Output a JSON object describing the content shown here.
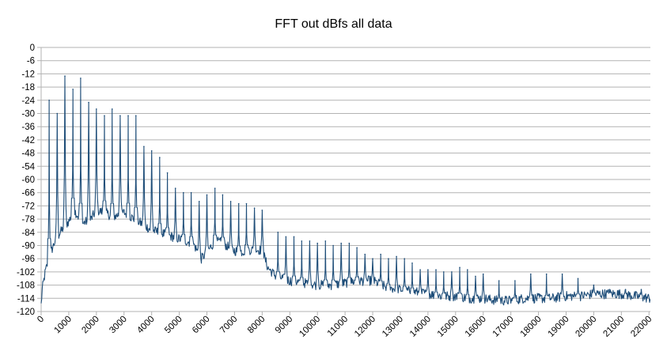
{
  "chart_data": {
    "type": "line",
    "title": "FFT out dBfs all data",
    "xlabel": "",
    "ylabel": "",
    "xlim": [
      0,
      22050
    ],
    "ylim": [
      -120,
      0
    ],
    "y_ticks": [
      0,
      -6,
      -12,
      -18,
      -24,
      -30,
      -36,
      -42,
      -48,
      -54,
      -60,
      -66,
      -72,
      -78,
      -84,
      -90,
      -96,
      -102,
      -108,
      -114,
      -120
    ],
    "x_ticks": [
      0,
      1000,
      2000,
      3000,
      4000,
      5000,
      6000,
      7000,
      8000,
      9000,
      10000,
      11000,
      12000,
      13000,
      14000,
      15000,
      16000,
      17000,
      18000,
      19000,
      20000,
      21000,
      22000
    ],
    "grid": true,
    "legend": "none",
    "line_color": "#1f4e79",
    "series": [
      {
        "name": "FFT out dBfs",
        "noise_floor": {
          "x": [
            0,
            40,
            150,
            300,
            500,
            800,
            1000,
            1200,
            1500,
            1800,
            2000,
            2300,
            2600,
            3000,
            3500,
            4000,
            4500,
            5000,
            5500,
            5800,
            6000,
            6300,
            6600,
            6900,
            7200,
            7500,
            7800,
            8000,
            8200,
            8500,
            9000,
            9500,
            10000,
            10500,
            11000,
            11500,
            12000,
            12500,
            13000,
            13500,
            14000,
            14500,
            15000,
            15500,
            16000,
            16500,
            17000,
            17500,
            18000,
            18500,
            19000,
            19500,
            20000,
            20500,
            21000,
            21500,
            22050
          ],
          "y": [
            -117,
            -110,
            -102,
            -95,
            -88,
            -82,
            -79,
            -74,
            -80,
            -78,
            -74,
            -75,
            -77,
            -75,
            -79,
            -83,
            -85,
            -87,
            -89,
            -96,
            -93,
            -88,
            -89,
            -92,
            -93,
            -92,
            -92,
            -92,
            -100,
            -104,
            -106,
            -107,
            -108,
            -108,
            -107,
            -106,
            -106,
            -109,
            -110,
            -111,
            -112,
            -113,
            -113,
            -114,
            -114,
            -115,
            -115,
            -114,
            -114,
            -114,
            -113,
            -113,
            -112,
            -112,
            -112,
            -113,
            -114
          ]
        },
        "harmonic_peaks": {
          "x": [
            290,
            580,
            860,
            1150,
            1430,
            1720,
            2000,
            2290,
            2570,
            2860,
            3150,
            3430,
            3720,
            4000,
            4290,
            4570,
            4860,
            5150,
            5430,
            5720,
            6000,
            6290,
            6570,
            6860,
            7150,
            7430,
            7720,
            8000,
            8570,
            8860,
            9150,
            9430,
            9720,
            10000,
            10290,
            10570,
            10860,
            11150,
            11430,
            11720,
            12000,
            12290,
            12570,
            12860,
            13150,
            13430,
            13720,
            14000,
            14290,
            14570,
            14860,
            15150,
            15430,
            15720,
            16000,
            16570,
            17150,
            17720,
            18290,
            18860,
            19430,
            20000,
            20570,
            21150,
            21720
          ],
          "y": [
            -24,
            -30,
            -13,
            -19,
            -14,
            -25,
            -28,
            -31,
            -28,
            -31,
            -31,
            -31,
            -45,
            -47,
            -50,
            -57,
            -64,
            -66,
            -66,
            -70,
            -67,
            -64,
            -67,
            -70,
            -71,
            -71,
            -73,
            -74,
            -84,
            -86,
            -86,
            -88,
            -88,
            -89,
            -88,
            -90,
            -89,
            -89,
            -91,
            -94,
            -96,
            -94,
            -96,
            -95,
            -96,
            -98,
            -101,
            -101,
            -101,
            -102,
            -102,
            -100,
            -101,
            -104,
            -103,
            -106,
            -106,
            -103,
            -103,
            -103,
            -105,
            -108,
            -110,
            -110,
            -110
          ]
        }
      }
    ]
  }
}
